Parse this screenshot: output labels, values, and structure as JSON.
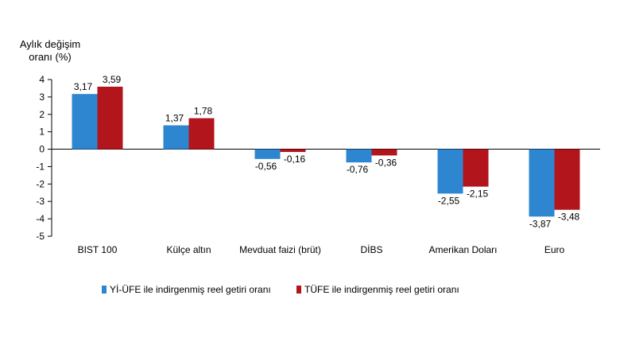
{
  "chart_data": {
    "type": "bar",
    "ylabel_line1": "Aylık değişim",
    "ylabel_line2": "oranı (%)",
    "ylim": [
      -5,
      4
    ],
    "yticks": [
      "-5",
      "-4",
      "-3",
      "-2",
      "-1",
      "0",
      "1",
      "2",
      "3",
      "4"
    ],
    "categories": [
      "BIST 100",
      "Külçe altın",
      "Mevduat faizi (brüt)",
      "DİBS",
      "Amerikan Doları",
      "Euro"
    ],
    "series": [
      {
        "name": "Yİ-ÜFE ile indirgenmiş reel getiri oranı",
        "color": "#2e86d1",
        "values": [
          3.17,
          1.37,
          -0.56,
          -0.76,
          -2.55,
          -3.87
        ],
        "labels": [
          "3,17",
          "1,37",
          "-0,56",
          "-0,76",
          "-2,55",
          "-3,87"
        ]
      },
      {
        "name": "TÜFE ile indirgenmiş reel getiri oranı",
        "color": "#b2151b",
        "values": [
          3.59,
          1.78,
          -0.16,
          -0.36,
          -2.15,
          -3.48
        ],
        "labels": [
          "3,59",
          "1,78",
          "-0,16",
          "-0,36",
          "-2,15",
          "-3,48"
        ]
      }
    ],
    "legend_position": "bottom",
    "grid": false
  }
}
